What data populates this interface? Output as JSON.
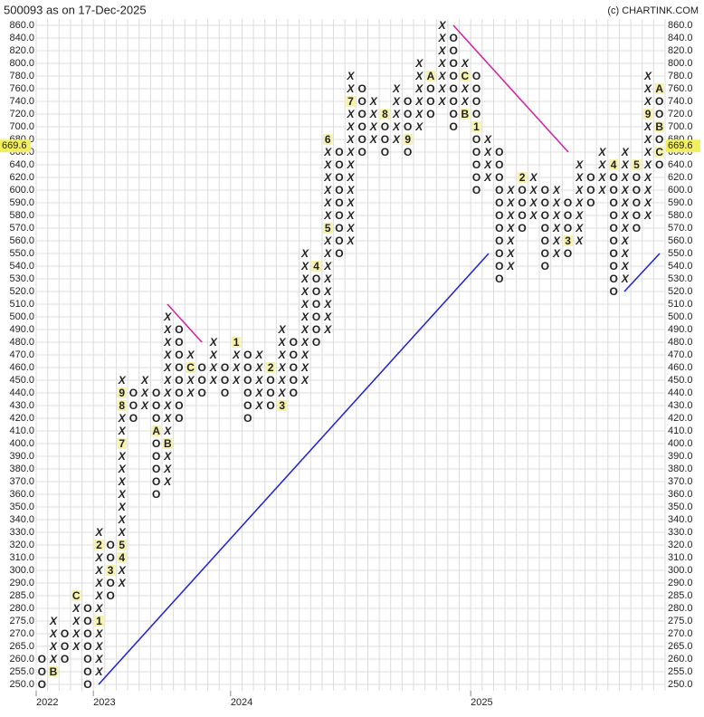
{
  "chart_data": {
    "type": "point_and_figure",
    "title": "500093 as on 17-Dec-2025",
    "credit": "(c) CHARTINK.COM",
    "last_price": 669.6,
    "yticks": [
      {
        "value": 860,
        "label": "860.0"
      },
      {
        "value": 840,
        "label": "840.0"
      },
      {
        "value": 820,
        "label": "820.0"
      },
      {
        "value": 800,
        "label": "800.0"
      },
      {
        "value": 780,
        "label": "780.0"
      },
      {
        "value": 760,
        "label": "760.0"
      },
      {
        "value": 740,
        "label": "740.0"
      },
      {
        "value": 720,
        "label": "720.0"
      },
      {
        "value": 700,
        "label": "700.0"
      },
      {
        "value": 680,
        "label": "680.0"
      },
      {
        "value": 660,
        "label": "660.0"
      },
      {
        "value": 640,
        "label": "640.0"
      },
      {
        "value": 620,
        "label": "620.0"
      },
      {
        "value": 600,
        "label": "600.0"
      },
      {
        "value": 590,
        "label": "590.0"
      },
      {
        "value": 580,
        "label": "580.0"
      },
      {
        "value": 570,
        "label": "570.0"
      },
      {
        "value": 560,
        "label": "560.0"
      },
      {
        "value": 550,
        "label": "550.0"
      },
      {
        "value": 540,
        "label": "540.0"
      },
      {
        "value": 530,
        "label": "530.0"
      },
      {
        "value": 520,
        "label": "520.0"
      },
      {
        "value": 510,
        "label": "510.0"
      },
      {
        "value": 500,
        "label": "500.0"
      },
      {
        "value": 490,
        "label": "490.0"
      },
      {
        "value": 480,
        "label": "480.0"
      },
      {
        "value": 470,
        "label": "470.0"
      },
      {
        "value": 460,
        "label": "460.0"
      },
      {
        "value": 450,
        "label": "450.0"
      },
      {
        "value": 440,
        "label": "440.0"
      },
      {
        "value": 430,
        "label": "430.0"
      },
      {
        "value": 420,
        "label": "420.0"
      },
      {
        "value": 410,
        "label": "410.0"
      },
      {
        "value": 400,
        "label": "400.0"
      },
      {
        "value": 390,
        "label": "390.0"
      },
      {
        "value": 380,
        "label": "380.0"
      },
      {
        "value": 370,
        "label": "370.0"
      },
      {
        "value": 360,
        "label": "360.0"
      },
      {
        "value": 350,
        "label": "350.0"
      },
      {
        "value": 340,
        "label": "340.0"
      },
      {
        "value": 330,
        "label": "330.0"
      },
      {
        "value": 320,
        "label": "320.0"
      },
      {
        "value": 310,
        "label": "310.0"
      },
      {
        "value": 300,
        "label": "300.0"
      },
      {
        "value": 290,
        "label": "290.0"
      },
      {
        "value": 285,
        "label": "285.0"
      },
      {
        "value": 280,
        "label": "280.0"
      },
      {
        "value": 275,
        "label": "275.0"
      },
      {
        "value": 270,
        "label": "270.0"
      },
      {
        "value": 265,
        "label": "265.0"
      },
      {
        "value": 260,
        "label": "260.0"
      },
      {
        "value": 255,
        "label": "255.0"
      },
      {
        "value": 250,
        "label": "250.0"
      }
    ],
    "years": [
      {
        "label": "2022",
        "column": 0
      },
      {
        "label": "2023",
        "column": 5
      },
      {
        "label": "2024",
        "column": 17
      },
      {
        "label": "2025",
        "column": 38
      }
    ],
    "columns": [
      {
        "top": 260,
        "symbols": [
          "O",
          "O",
          "O"
        ]
      },
      {
        "top": 275,
        "symbols": [
          "X",
          "X",
          "X",
          "X",
          "B"
        ]
      },
      {
        "top": 270,
        "symbols": [
          "O",
          "O",
          "O"
        ]
      },
      {
        "top": 285,
        "symbols": [
          "C",
          "X",
          "X",
          "X",
          "X"
        ]
      },
      {
        "top": 280,
        "symbols": [
          "O",
          "O",
          "O",
          "O",
          "O",
          "O",
          "O"
        ]
      },
      {
        "top": 330,
        "symbols": [
          "X",
          "2",
          "X",
          "X",
          "X",
          "X",
          "X",
          "1",
          "X",
          "X",
          "X",
          "X"
        ]
      },
      {
        "top": 320,
        "symbols": [
          "O",
          "O",
          "3",
          "O",
          "O"
        ]
      },
      {
        "top": 450,
        "symbols": [
          "X",
          "9",
          "8",
          "X",
          "X",
          "7",
          "X",
          "X",
          "X",
          "X",
          "X",
          "X",
          "X",
          "5",
          "4",
          "X",
          "X"
        ]
      },
      {
        "top": 440,
        "symbols": [
          "O",
          "O",
          "O"
        ]
      },
      {
        "top": 450,
        "symbols": [
          "X",
          "X",
          "X"
        ]
      },
      {
        "top": 440,
        "symbols": [
          "O",
          "O",
          "O",
          "A",
          "O",
          "O",
          "O",
          "O",
          "O"
        ]
      },
      {
        "top": 500,
        "symbols": [
          "X",
          "X",
          "X",
          "X",
          "X",
          "X",
          "X",
          "X",
          "X",
          "X",
          "B",
          "X",
          "X",
          "X"
        ]
      },
      {
        "top": 490,
        "symbols": [
          "O",
          "O",
          "O",
          "O",
          "O",
          "O",
          "O",
          "O"
        ]
      },
      {
        "top": 470,
        "symbols": [
          "X",
          "C",
          "X",
          "X"
        ]
      },
      {
        "top": 460,
        "symbols": [
          "O",
          "O",
          "O"
        ]
      },
      {
        "top": 480,
        "symbols": [
          "X",
          "X",
          "X",
          "X"
        ]
      },
      {
        "top": 460,
        "symbols": [
          "O",
          "O",
          "O"
        ]
      },
      {
        "top": 480,
        "symbols": [
          "1",
          "X",
          "X",
          "X"
        ]
      },
      {
        "top": 470,
        "symbols": [
          "O",
          "O",
          "O",
          "O",
          "O",
          "O"
        ]
      },
      {
        "top": 470,
        "symbols": [
          "X",
          "X",
          "X",
          "X",
          "X"
        ]
      },
      {
        "top": 460,
        "symbols": [
          "2",
          "O",
          "O",
          "O"
        ]
      },
      {
        "top": 490,
        "symbols": [
          "X",
          "X",
          "X",
          "X",
          "X",
          "X",
          "3"
        ]
      },
      {
        "top": 480,
        "symbols": [
          "O",
          "O",
          "O",
          "O",
          "O"
        ]
      },
      {
        "top": 550,
        "symbols": [
          "X",
          "X",
          "X",
          "X",
          "X",
          "X",
          "X",
          "X",
          "X",
          "X",
          "X"
        ]
      },
      {
        "top": 540,
        "symbols": [
          "4",
          "O",
          "O",
          "O",
          "O",
          "O",
          "O"
        ]
      },
      {
        "top": 680,
        "symbols": [
          "6",
          "X",
          "X",
          "X",
          "X",
          "X",
          "X",
          "5",
          "X",
          "X",
          "X",
          "X",
          "X",
          "X",
          "X",
          "X"
        ]
      },
      {
        "top": 660,
        "symbols": [
          "O",
          "O",
          "O",
          "O",
          "O",
          "O",
          "O",
          "O",
          "O"
        ]
      },
      {
        "top": 780,
        "symbols": [
          "X",
          "X",
          "7",
          "X",
          "X",
          "X",
          "X",
          "X",
          "X",
          "X",
          "X",
          "X",
          "X",
          "X"
        ]
      },
      {
        "top": 760,
        "symbols": [
          "O",
          "O",
          "O",
          "O",
          "O",
          "O"
        ]
      },
      {
        "top": 740,
        "symbols": [
          "X",
          "X",
          "X",
          "X"
        ]
      },
      {
        "top": 720,
        "symbols": [
          "8",
          "O",
          "O",
          "O"
        ]
      },
      {
        "top": 760,
        "symbols": [
          "X",
          "X",
          "X",
          "X",
          "X"
        ]
      },
      {
        "top": 740,
        "symbols": [
          "O",
          "O",
          "O",
          "9",
          "O"
        ]
      },
      {
        "top": 800,
        "symbols": [
          "X",
          "X",
          "X",
          "X",
          "X",
          "X"
        ]
      },
      {
        "top": 780,
        "symbols": [
          "A",
          "O",
          "O",
          "O"
        ]
      },
      {
        "top": 860,
        "symbols": [
          "X",
          "X",
          "X",
          "X",
          "X",
          "X",
          "X"
        ]
      },
      {
        "top": 840,
        "symbols": [
          "O",
          "O",
          "O",
          "O",
          "O",
          "O",
          "O",
          "O"
        ]
      },
      {
        "top": 800,
        "symbols": [
          "X",
          "C",
          "X",
          "X",
          "B"
        ]
      },
      {
        "top": 780,
        "symbols": [
          "O",
          "O",
          "O",
          "O",
          "1",
          "O",
          "O",
          "O",
          "O",
          "O"
        ]
      },
      {
        "top": 680,
        "symbols": [
          "X",
          "X",
          "X",
          "X"
        ]
      },
      {
        "top": 660,
        "symbols": [
          "O",
          "O",
          "O",
          "O",
          "O",
          "O",
          "O",
          "O",
          "O",
          "O",
          "O"
        ]
      },
      {
        "top": 600,
        "symbols": [
          "X",
          "X",
          "X",
          "X",
          "X",
          "X",
          "X"
        ]
      },
      {
        "top": 620,
        "symbols": [
          "2",
          "O",
          "O",
          "O",
          "O"
        ]
      },
      {
        "top": 620,
        "symbols": [
          "X",
          "X",
          "X",
          "X"
        ]
      },
      {
        "top": 600,
        "symbols": [
          "O",
          "O",
          "O",
          "O",
          "O",
          "O",
          "O"
        ]
      },
      {
        "top": 600,
        "symbols": [
          "X",
          "X",
          "X",
          "X",
          "X",
          "X"
        ]
      },
      {
        "top": 590,
        "symbols": [
          "O",
          "O",
          "O",
          "3",
          "O"
        ]
      },
      {
        "top": 640,
        "symbols": [
          "X",
          "X",
          "X",
          "X",
          "X",
          "X",
          "X"
        ]
      },
      {
        "top": 620,
        "symbols": [
          "O",
          "O",
          "O"
        ]
      },
      {
        "top": 660,
        "symbols": [
          "X",
          "X",
          "X",
          "X"
        ]
      },
      {
        "top": 640,
        "symbols": [
          "4",
          "O",
          "O",
          "O",
          "O",
          "O",
          "O",
          "O",
          "O",
          "O",
          "O"
        ]
      },
      {
        "top": 660,
        "symbols": [
          "X",
          "X",
          "X",
          "X",
          "X",
          "X",
          "X",
          "X",
          "X",
          "X",
          "X"
        ]
      },
      {
        "top": 640,
        "symbols": [
          "5",
          "O",
          "O",
          "O",
          "O",
          "O"
        ]
      },
      {
        "top": 780,
        "symbols": [
          "X",
          "X",
          "X",
          "9",
          "X",
          "X",
          "X",
          "X",
          "X",
          "X",
          "X",
          "X"
        ]
      },
      {
        "top": 760,
        "symbols": [
          "A",
          "O",
          "O",
          "B",
          "O",
          "C",
          "O"
        ]
      }
    ]
  }
}
